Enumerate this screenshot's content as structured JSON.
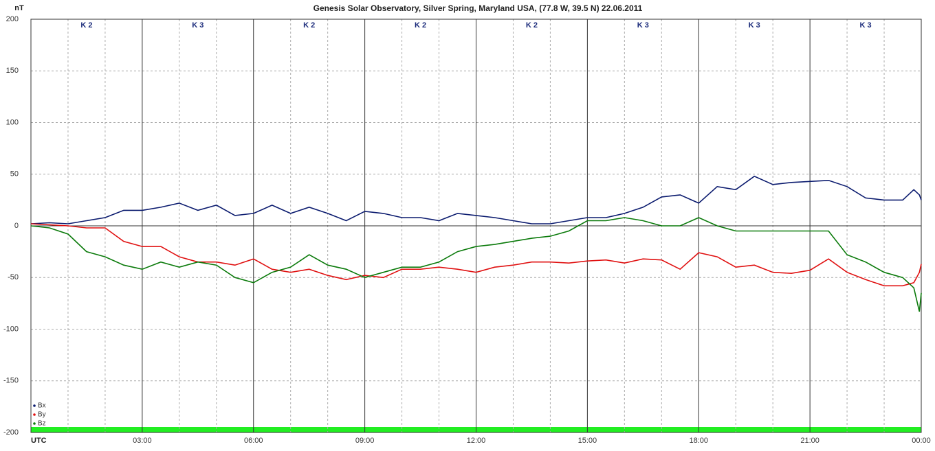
{
  "chart_data": {
    "type": "line",
    "title": "Genesis Solar Observatory, Silver Spring, Maryland USA, (77.8 W, 39.5 N)  22.06.2011",
    "ylabel": "nT",
    "x": [
      0,
      0.5,
      1,
      1.5,
      2,
      2.5,
      3,
      3.5,
      4,
      4.5,
      5,
      5.5,
      6,
      6.5,
      7,
      7.5,
      8,
      8.5,
      9,
      9.5,
      10,
      10.5,
      11,
      11.5,
      12,
      12.5,
      13,
      13.5,
      14,
      14.5,
      15,
      15.5,
      16,
      16.5,
      17,
      17.5,
      18,
      18.5,
      19,
      19.5,
      20,
      20.5,
      21,
      21.5,
      22,
      22.5,
      23,
      23.5,
      23.8,
      23.95,
      24
    ],
    "series": [
      {
        "name": "Bx",
        "color": "#0a1a6e",
        "values": [
          2,
          3,
          2,
          5,
          8,
          15,
          15,
          18,
          22,
          15,
          20,
          10,
          12,
          20,
          12,
          18,
          12,
          5,
          14,
          12,
          8,
          8,
          5,
          12,
          10,
          8,
          5,
          2,
          2,
          5,
          8,
          8,
          12,
          18,
          28,
          30,
          22,
          38,
          35,
          48,
          40,
          42,
          43,
          44,
          38,
          27,
          25,
          25,
          35,
          30,
          25
        ]
      },
      {
        "name": "By",
        "color": "#e01010",
        "values": [
          2,
          1,
          0,
          -2,
          -2,
          -15,
          -20,
          -20,
          -30,
          -35,
          -35,
          -38,
          -32,
          -42,
          -45,
          -42,
          -48,
          -52,
          -48,
          -50,
          -42,
          -42,
          -40,
          -42,
          -45,
          -40,
          -38,
          -35,
          -35,
          -36,
          -34,
          -33,
          -36,
          -32,
          -33,
          -42,
          -26,
          -30,
          -40,
          -38,
          -45,
          -46,
          -43,
          -32,
          -45,
          -52,
          -58,
          -58,
          -55,
          -45,
          -37
        ]
      },
      {
        "name": "Bz",
        "color": "#0a7a0a",
        "values": [
          0,
          -2,
          -8,
          -25,
          -30,
          -38,
          -42,
          -35,
          -40,
          -35,
          -38,
          -50,
          -55,
          -45,
          -40,
          -28,
          -38,
          -42,
          -50,
          -45,
          -40,
          -40,
          -35,
          -25,
          -20,
          -18,
          -15,
          -12,
          -10,
          -5,
          5,
          5,
          8,
          5,
          0,
          0,
          8,
          0,
          -5,
          -5,
          -5,
          -5,
          -5,
          -5,
          -28,
          -35,
          -45,
          -50,
          -60,
          -83,
          -65
        ]
      }
    ],
    "xlim": [
      0,
      24
    ],
    "xticks": [
      {
        "value": 0,
        "label": "UTC"
      },
      {
        "value": 3,
        "label": "03:00"
      },
      {
        "value": 6,
        "label": "06:00"
      },
      {
        "value": 9,
        "label": "09:00"
      },
      {
        "value": 12,
        "label": "12:00"
      },
      {
        "value": 15,
        "label": "15:00"
      },
      {
        "value": 18,
        "label": "18:00"
      },
      {
        "value": 21,
        "label": "21:00"
      },
      {
        "value": 24,
        "label": "00:00"
      }
    ],
    "ylim": [
      -200,
      200
    ],
    "yticks": [
      200,
      150,
      100,
      50,
      0,
      -50,
      -100,
      -150,
      -200
    ],
    "k_index": [
      "K 2",
      "K 3",
      "K 2",
      "K 2",
      "K 2",
      "K 3",
      "K 3",
      "K 3"
    ],
    "grid": true,
    "legend": "lower left"
  }
}
